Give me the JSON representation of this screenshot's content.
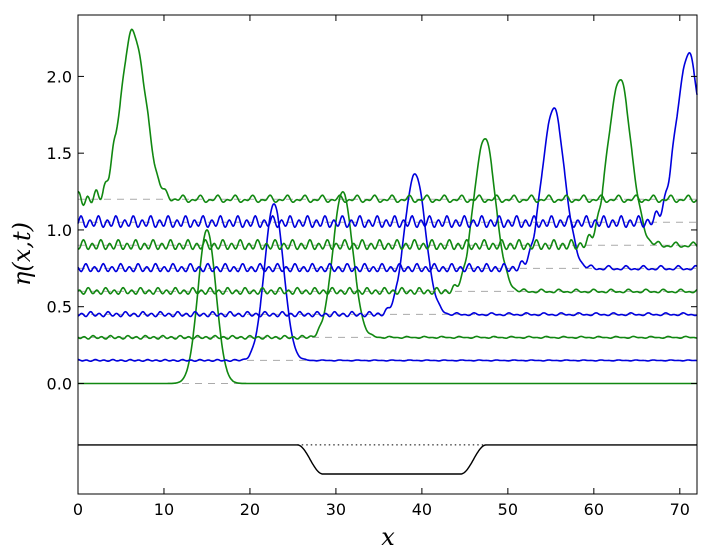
{
  "chart_data": {
    "type": "line",
    "title": "",
    "xlabel": "x",
    "ylabel": "η(x,t)",
    "xlim": [
      0,
      72
    ],
    "ylim": [
      -0.72,
      2.4
    ],
    "xticks": [
      "0",
      "10",
      "20",
      "30",
      "40",
      "50",
      "60",
      "70"
    ],
    "yticks": [
      "0.0",
      "0.5",
      "1.0",
      "1.5",
      "2.0"
    ],
    "grid": false,
    "legend": "none",
    "colors": {
      "blue": "#0000dd",
      "green": "#118811",
      "bottom": "#000000",
      "baseline": "#aaaaaa"
    },
    "series": [
      {
        "offset": 0.0,
        "peak_x": 15.0,
        "peak_y": 1.0,
        "color": "green",
        "osc_amp": 0.0
      },
      {
        "offset": 0.15,
        "peak_x": 22.8,
        "peak_y": 1.17,
        "color": "blue",
        "osc_amp": 0.004
      },
      {
        "offset": 0.3,
        "peak_x": 30.8,
        "peak_y": 1.25,
        "color": "green",
        "osc_amp": 0.008
      },
      {
        "offset": 0.45,
        "peak_x": 39.2,
        "peak_y": 1.37,
        "color": "blue",
        "osc_amp": 0.012
      },
      {
        "offset": 0.6,
        "peak_x": 47.3,
        "peak_y": 1.6,
        "color": "green",
        "osc_amp": 0.016
      },
      {
        "offset": 0.75,
        "peak_x": 55.3,
        "peak_y": 1.79,
        "color": "blue",
        "osc_amp": 0.02
      },
      {
        "offset": 0.9,
        "peak_x": 63.0,
        "peak_y": 1.98,
        "color": "green",
        "osc_amp": 0.024
      },
      {
        "offset": 1.05,
        "peak_x": 71.0,
        "peak_y": 2.14,
        "color": "blue",
        "osc_amp": 0.028
      },
      {
        "offset": 1.2,
        "peak_x": 6.4,
        "peak_y": 2.29,
        "color": "green",
        "osc_amp": 0.032
      }
    ],
    "bathymetry": {
      "level": -0.4,
      "depth": -0.59,
      "x_start": 25.5,
      "x_flat_start": 28.5,
      "x_flat_end": 44.5,
      "x_end": 47.5
    }
  }
}
